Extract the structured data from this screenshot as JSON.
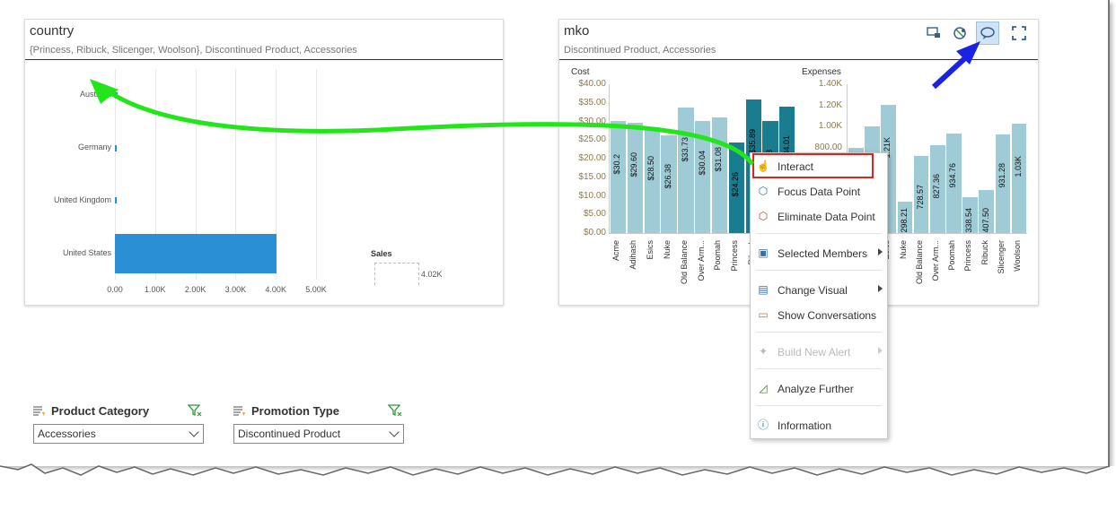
{
  "country_panel": {
    "title": "country",
    "subtitle": "{Princess, Ribuck, Slicenger, Woolson}, Discontinued Product, Accessories",
    "legend_title": "Sales",
    "legend_value": "4.02K"
  },
  "mko_panel": {
    "title": "mko",
    "subtitle": "Discontinued Product, Accessories",
    "toolbar": [
      "show-conversations-icon",
      "refresh-explore-icon",
      "interact-mode-icon",
      "fullscreen-icon"
    ]
  },
  "chart_data": [
    {
      "type": "bar",
      "orientation": "horizontal",
      "categories": [
        "Australia",
        "Germany",
        "United Kingdom",
        "United States"
      ],
      "series": [
        {
          "name": "Sales",
          "values": [
            70,
            25,
            35,
            4020
          ]
        }
      ],
      "xticks": [
        "0.00",
        "1.00K",
        "2.00K",
        "3.00K",
        "4.00K",
        "5.00K"
      ],
      "xlim": [
        0,
        5000
      ],
      "legend": "right"
    },
    {
      "type": "bar",
      "title": "Cost",
      "categories": [
        "Acme",
        "Adihash",
        "Esics",
        "Nuke",
        "Old Balance",
        "Over Arm...",
        "Poomah",
        "Princess",
        "Ribuck",
        "Slicenger",
        "Woolson"
      ],
      "values": [
        30.2,
        29.6,
        28.5,
        26.38,
        33.73,
        30.04,
        31.08,
        24.26,
        35.89,
        30.18,
        34.01
      ],
      "data_labels": [
        "$30.2",
        "$29.60",
        "$28.50",
        "$26.38",
        "$33.73",
        "$30.04",
        "$31.08",
        "$24.26",
        "$35.89",
        "$30.18",
        "$34.01"
      ],
      "highlighted": [
        false,
        false,
        false,
        false,
        false,
        false,
        false,
        true,
        true,
        true,
        true
      ],
      "yticks": [
        "$40.00",
        "$35.00",
        "$30.00",
        "$25.00",
        "$20.00",
        "$15.00",
        "$10.00",
        "$5.00",
        "$0.00"
      ],
      "ylim": [
        0,
        40
      ]
    },
    {
      "type": "bar",
      "title": "Expenses",
      "categories": [
        "Acme",
        "Adihash",
        "Esics",
        "Nuke",
        "Old Balance",
        "Over Arm...",
        "Poomah",
        "Princess",
        "Ribuck",
        "Slicenger",
        "Woolson"
      ],
      "values": [
        800,
        1000,
        1210,
        298.21,
        728.57,
        827.36,
        934.76,
        338.54,
        407.5,
        931.28,
        1030
      ],
      "data_labels": [
        "",
        "",
        "1.21K",
        "298.21",
        "728.57",
        "827.36",
        "934.76",
        "338.54",
        "407.50",
        "931.28",
        "1.03K"
      ],
      "yticks": [
        "1.40K",
        "1.20K",
        "1.00K",
        "800.00"
      ],
      "ylim": [
        0,
        1400
      ]
    }
  ],
  "context_menu": {
    "items": [
      {
        "label": "Interact",
        "icon": "interact-icon",
        "submenu": false,
        "disabled": false
      },
      {
        "label": "Focus Data Point",
        "icon": "focus-cube-icon",
        "submenu": false,
        "disabled": false
      },
      {
        "label": "Eliminate Data Point",
        "icon": "eliminate-cube-icon",
        "submenu": false,
        "disabled": false
      },
      {
        "label": "Selected Members",
        "icon": "selected-members-icon",
        "submenu": true,
        "disabled": false
      },
      {
        "label": "Change Visual",
        "icon": "change-visual-icon",
        "submenu": true,
        "disabled": false
      },
      {
        "label": "Show Conversations",
        "icon": "conversations-icon",
        "submenu": false,
        "disabled": false
      },
      {
        "label": "Build New Alert",
        "icon": "alert-icon",
        "submenu": true,
        "disabled": true
      },
      {
        "label": "Analyze Further",
        "icon": "analyze-icon",
        "submenu": false,
        "disabled": false
      },
      {
        "label": "Information",
        "icon": "info-icon",
        "submenu": false,
        "disabled": false
      }
    ]
  },
  "filters": [
    {
      "title": "Product Category",
      "value": "Accessories"
    },
    {
      "title": "Promotion Type",
      "value": "Discontinued Product"
    }
  ],
  "colors": {
    "sales_bar": "#2b8fd6",
    "cost_bar": "#9fcbd6",
    "cost_bar_selected": "#1a7c8f",
    "green_arrow": "#22e61a",
    "blue_arrow": "#1a22e6",
    "highlight_box": "#e2231a"
  }
}
